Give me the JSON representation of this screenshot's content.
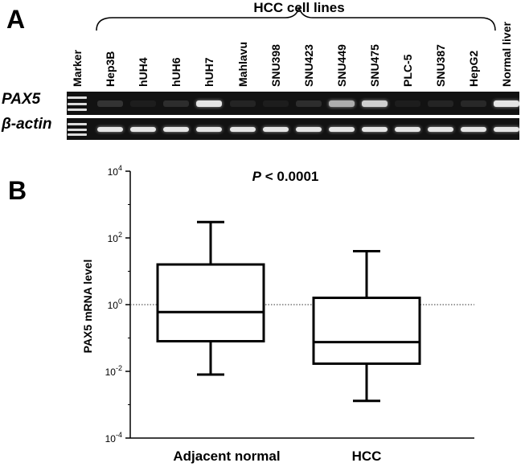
{
  "panel_a": {
    "letter": "A",
    "group_title": "HCC cell lines",
    "lanes": [
      "Marker",
      "Hep3B",
      "hUH4",
      "hUH6",
      "hUH7",
      "Mahlavu",
      "SNU398",
      "SNU423",
      "SNU449",
      "SNU475",
      "PLC-5",
      "SNU387",
      "HepG2",
      "Normal liver"
    ],
    "genes": [
      "PAX5",
      "β-actin"
    ],
    "pax5_band_intensity": [
      0.0,
      0.15,
      0.05,
      0.12,
      0.95,
      0.08,
      0.05,
      0.12,
      0.7,
      0.85,
      0.05,
      0.08,
      0.1,
      0.95
    ],
    "actin_band_intensity": [
      1.0,
      0.95,
      0.95,
      0.95,
      0.95,
      0.95,
      0.95,
      0.95,
      0.95,
      0.95,
      0.95,
      0.95,
      0.95,
      0.95
    ],
    "colors": {
      "gel": "#121212",
      "band": "#f0f0f0"
    }
  },
  "panel_b": {
    "letter": "B",
    "p_label_italic": "P",
    "p_label_rest": " < 0.0001"
  },
  "chart_data": {
    "type": "box",
    "title": "",
    "xlabel": "",
    "ylabel": "PAX5 mRNA level",
    "categories": [
      "Adjacent normal",
      "HCC"
    ],
    "y_scale": "log10",
    "ylim": [
      0.0001,
      10000
    ],
    "yticks": [
      {
        "base": "10",
        "exp": "4",
        "value": 10000
      },
      {
        "base": "10",
        "exp": "2",
        "value": 100
      },
      {
        "base": "10",
        "exp": "0",
        "value": 1
      },
      {
        "base": "10",
        "exp": "-2",
        "value": 0.01
      },
      {
        "base": "10",
        "exp": "-4",
        "value": 0.0001
      }
    ],
    "boxes": [
      {
        "category": "Adjacent normal",
        "min": 0.008,
        "q1": 0.08,
        "median": 0.6,
        "q3": 16,
        "max": 300
      },
      {
        "category": "HCC",
        "min": 0.0013,
        "q1": 0.017,
        "median": 0.075,
        "q3": 1.6,
        "max": 40
      }
    ],
    "reference_line": {
      "value": 1,
      "style": "dotted"
    },
    "grid": false
  }
}
